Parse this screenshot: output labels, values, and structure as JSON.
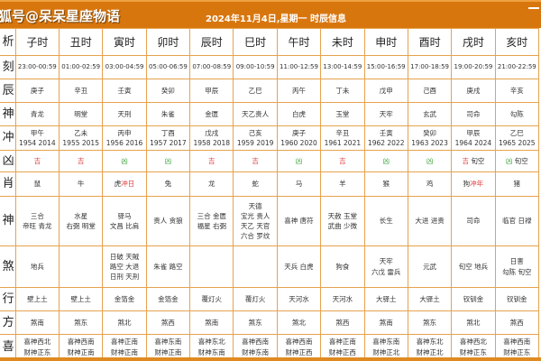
{
  "header": {
    "brand": "狐号@呆呆星座物语",
    "title": "2024年11月4日,星期一 时辰信息"
  },
  "row_labels": [
    "析",
    "刻",
    "辰",
    "神",
    "冲",
    "凶",
    "肖",
    "神",
    "煞",
    "行",
    "方",
    "喜"
  ],
  "colors": {
    "header": "#d8760e",
    "border": "#e6a24e",
    "ji": "#e03a3a",
    "xiong": "#3aa33a"
  },
  "columns": [
    {
      "name": "子时",
      "time": "23:00-00:59",
      "ganzhi": "庚子",
      "shen": "青龙",
      "chong": [
        "甲午",
        "1954 2014"
      ],
      "jx": "吉",
      "jx_extra": "",
      "xiao": "鼠",
      "xiao_extra": "",
      "jishen": [
        "三合",
        "帝旺 青龙"
      ],
      "sha": [
        "地兵"
      ],
      "xing": "壁上土",
      "fang": "煞南",
      "xi": [
        "喜神西北",
        "财神正东"
      ]
    },
    {
      "name": "丑时",
      "time": "01:00-02:59",
      "ganzhi": "辛丑",
      "shen": "明堂",
      "chong": [
        "乙未",
        "1955 2015"
      ],
      "jx": "吉",
      "jx_extra": "",
      "xiao": "牛",
      "xiao_extra": "",
      "jishen": [
        "水星",
        "右弼 明堂"
      ],
      "sha": [],
      "xing": "壁上土",
      "fang": "煞东",
      "xi": [
        "喜神西南",
        "财神正南"
      ]
    },
    {
      "name": "寅时",
      "time": "03:00-04:59",
      "ganzhi": "壬寅",
      "shen": "天刑",
      "chong": [
        "丙申",
        "1956 2016"
      ],
      "jx": "凶",
      "jx_extra": "",
      "xiao": "虎",
      "xiao_extra": "冲日",
      "jishen": [
        "驿马",
        "文昌 比肩"
      ],
      "sha": [
        "日破 天賊",
        "路空 大退",
        "日刑 天刑"
      ],
      "xing": "金箔金",
      "fang": "煞北",
      "xi": [
        "喜神正南",
        "财神正南"
      ]
    },
    {
      "name": "卯时",
      "time": "05:00-06:59",
      "ganzhi": "癸卯",
      "shen": "朱雀",
      "chong": [
        "丁酉",
        "1957 2017"
      ],
      "jx": "凶",
      "jx_extra": "",
      "xiao": "兔",
      "xiao_extra": "",
      "jishen": [
        "贵人 贪狼"
      ],
      "sha": [
        "朱雀 路空"
      ],
      "xing": "金箔金",
      "fang": "煞西",
      "xi": [
        "喜神东南",
        "财神正南"
      ]
    },
    {
      "name": "辰时",
      "time": "07:00-08:59",
      "ganzhi": "甲辰",
      "shen": "金匮",
      "chong": [
        "戊戌",
        "1958 2018"
      ],
      "jx": "吉",
      "jx_extra": "",
      "xiao": "龙",
      "xiao_extra": "",
      "jishen": [
        "三合 金匮",
        "福星 右弼"
      ],
      "sha": [],
      "xing": "覆灯火",
      "fang": "煞南",
      "xi": [
        "喜神东北",
        "财神东南"
      ]
    },
    {
      "name": "巳时",
      "time": "09:00-10:59",
      "ganzhi": "乙巳",
      "shen": "天乙贵人",
      "chong": [
        "己亥",
        "1959 2019"
      ],
      "jx": "吉",
      "jx_extra": "",
      "xiao": "蛇",
      "xiao_extra": "",
      "jishen": [
        "天德",
        "宝光 贵人",
        "天乙 天官",
        "六合 罗纹"
      ],
      "sha": [],
      "xing": "覆灯火",
      "fang": "煞东",
      "xi": [
        "喜神西南",
        "财神东南"
      ]
    },
    {
      "name": "午时",
      "time": "11:00-12:59",
      "ganzhi": "丙午",
      "shen": "白虎",
      "chong": [
        "庚子",
        "1960 2020"
      ],
      "jx": "凶",
      "jx_extra": "",
      "xiao": "马",
      "xiao_extra": "",
      "jishen": [
        "喜神 唐符"
      ],
      "sha": [
        "天兵 白虎"
      ],
      "xing": "天河水",
      "fang": "煞北",
      "xi": [
        "喜神西南",
        "财神正西"
      ]
    },
    {
      "name": "未时",
      "time": "13:00-14:59",
      "ganzhi": "丁未",
      "shen": "玉堂",
      "chong": [
        "辛丑",
        "1961 2021"
      ],
      "jx": "吉",
      "jx_extra": "",
      "xiao": "羊",
      "xiao_extra": "",
      "jishen": [
        "天赦 玉堂",
        "武曲 少微"
      ],
      "sha": [
        "狗食"
      ],
      "xing": "天河水",
      "fang": "煞西",
      "xi": [
        "喜神正南",
        "财神正西"
      ]
    },
    {
      "name": "申时",
      "time": "15:00-16:59",
      "ganzhi": "戊申",
      "shen": "天牢",
      "chong": [
        "壬寅",
        "1962 2022"
      ],
      "jx": "凶",
      "jx_extra": "",
      "xiao": "猴",
      "xiao_extra": "",
      "jishen": [
        "长生"
      ],
      "sha": [
        "天牢",
        "六戊 雷兵"
      ],
      "xing": "大驿土",
      "fang": "煞南",
      "xi": [
        "喜神东南",
        "财神正北"
      ]
    },
    {
      "name": "酉时",
      "time": "17:00-18:59",
      "ganzhi": "己酉",
      "shen": "玄武",
      "chong": [
        "癸卯",
        "1963 2023"
      ],
      "jx": "凶",
      "jx_extra": "",
      "xiao": "鸡",
      "xiao_extra": "",
      "jishen": [
        "大进 进贵"
      ],
      "sha": [
        "元武"
      ],
      "xing": "大驿土",
      "fang": "煞东",
      "xi": [
        "喜神东北",
        "财神正北"
      ]
    },
    {
      "name": "戌时",
      "time": "19:00-20:59",
      "ganzhi": "庚戌",
      "shen": "司命",
      "chong": [
        "甲辰",
        "1964 2024"
      ],
      "jx": "吉",
      "jx_extra": "旬空",
      "xiao": "狗",
      "xiao_extra": "冲年",
      "jishen": [
        "司命"
      ],
      "sha": [
        "旬空 地兵"
      ],
      "xing": "钗钏金",
      "fang": "煞北",
      "xi": [
        "喜神西北",
        "财神正东"
      ]
    },
    {
      "name": "亥时",
      "time": "21:00-22:59",
      "ganzhi": "辛亥",
      "shen": "勾陈",
      "chong": [
        "乙巳",
        "1965 2025"
      ],
      "jx": "凶",
      "jx_extra": "旬空",
      "xiao": "猪",
      "xiao_extra": "",
      "jishen": [
        "临官 日禄"
      ],
      "sha": [
        "日害",
        "勾陈 旬空"
      ],
      "xing": "钗钏金",
      "fang": "煞西",
      "xi": [
        "喜神西南",
        "财神正东"
      ]
    }
  ]
}
